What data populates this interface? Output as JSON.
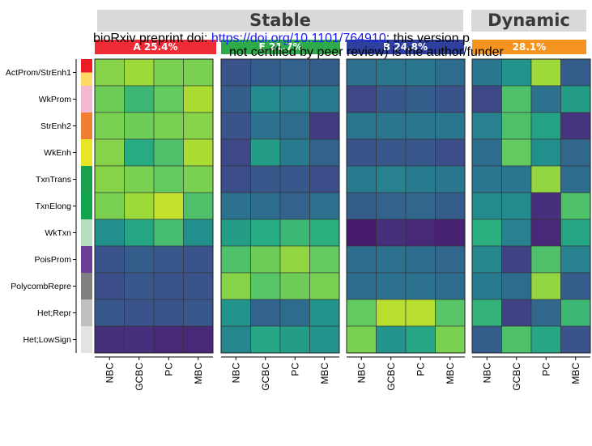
{
  "headers": [
    {
      "label": "Stable"
    },
    {
      "label": "Dynamic"
    }
  ],
  "watermark": {
    "line1_prefix": "bioRxiv preprint doi: ",
    "line1_link": "https://doi.org/10.1101/764910",
    "line1_suffix": "; this version p",
    "line2": "not certified by peer review) is the author/funder"
  },
  "panels": [
    {
      "tag": "A 25.4%",
      "color": "#ee2b34"
    },
    {
      "tag": "F 21.7%",
      "color": "#2daa4a"
    },
    {
      "tag": "B 24.8%",
      "color": "#2e3f9e"
    },
    {
      "tag": "28.1%",
      "color": "#f5941e"
    }
  ],
  "chart_data": {
    "type": "heatmap",
    "rows": [
      "ActProm/StrEnh1",
      "WkProm",
      "StrEnh2",
      "WkEnh",
      "TxnTrans",
      "TxnElong",
      "WkTxn",
      "PoisProm",
      "PolycombRepre",
      "Het;Repr",
      "Het;LowSign"
    ],
    "row_colors": [
      [
        "#ed1c24",
        "#ffd966"
      ],
      [
        "#f4b8d2"
      ],
      [
        "#f07f33"
      ],
      [
        "#e8e526"
      ],
      [
        "#1b9f4c"
      ],
      [
        "#12a34d"
      ],
      [
        "#b6dfc2"
      ],
      [
        "#6b3d97"
      ],
      [
        "#808080"
      ],
      [
        "#c0c0c0"
      ],
      [
        "#e3e3e3"
      ]
    ],
    "columns": [
      "NBC",
      "GCBC",
      "PC",
      "MBC"
    ],
    "colorscale": "viridis",
    "panels": [
      {
        "values": [
          [
            0.82,
            0.86,
            0.8,
            0.8
          ],
          [
            0.78,
            0.68,
            0.76,
            0.88
          ],
          [
            0.8,
            0.78,
            0.8,
            0.82
          ],
          [
            0.82,
            0.62,
            0.72,
            0.88
          ],
          [
            0.82,
            0.8,
            0.76,
            0.8
          ],
          [
            0.8,
            0.86,
            0.92,
            0.72
          ],
          [
            0.5,
            0.6,
            0.7,
            0.5
          ],
          [
            0.26,
            0.3,
            0.28,
            0.26
          ],
          [
            0.24,
            0.28,
            0.26,
            0.26
          ],
          [
            0.28,
            0.26,
            0.26,
            0.28
          ],
          [
            0.14,
            0.14,
            0.12,
            0.12
          ]
        ]
      },
      {
        "values": [
          [
            0.26,
            0.3,
            0.32,
            0.3
          ],
          [
            0.3,
            0.48,
            0.44,
            0.42
          ],
          [
            0.26,
            0.38,
            0.36,
            0.18
          ],
          [
            0.22,
            0.56,
            0.42,
            0.32
          ],
          [
            0.24,
            0.28,
            0.28,
            0.24
          ],
          [
            0.38,
            0.36,
            0.32,
            0.38
          ],
          [
            0.56,
            0.62,
            0.68,
            0.64
          ],
          [
            0.72,
            0.78,
            0.84,
            0.76
          ],
          [
            0.82,
            0.74,
            0.78,
            0.8
          ],
          [
            0.52,
            0.32,
            0.36,
            0.52
          ],
          [
            0.46,
            0.6,
            0.56,
            0.52
          ]
        ]
      },
      {
        "values": [
          [
            0.38,
            0.4,
            0.4,
            0.36
          ],
          [
            0.22,
            0.28,
            0.3,
            0.26
          ],
          [
            0.4,
            0.4,
            0.4,
            0.4
          ],
          [
            0.26,
            0.28,
            0.28,
            0.24
          ],
          [
            0.42,
            0.44,
            0.42,
            0.4
          ],
          [
            0.3,
            0.32,
            0.34,
            0.3
          ],
          [
            0.08,
            0.14,
            0.12,
            0.1
          ],
          [
            0.36,
            0.38,
            0.36,
            0.34
          ],
          [
            0.36,
            0.38,
            0.38,
            0.36
          ],
          [
            0.76,
            0.9,
            0.9,
            0.74
          ],
          [
            0.8,
            0.52,
            0.6,
            0.8
          ]
        ]
      },
      {
        "values": [
          [
            0.4,
            0.52,
            0.86,
            0.3
          ],
          [
            0.22,
            0.72,
            0.38,
            0.56
          ],
          [
            0.44,
            0.72,
            0.58,
            0.16
          ],
          [
            0.36,
            0.76,
            0.5,
            0.34
          ],
          [
            0.4,
            0.4,
            0.84,
            0.36
          ],
          [
            0.48,
            0.48,
            0.14,
            0.72
          ],
          [
            0.64,
            0.44,
            0.12,
            0.6
          ],
          [
            0.46,
            0.2,
            0.72,
            0.44
          ],
          [
            0.42,
            0.36,
            0.84,
            0.3
          ],
          [
            0.66,
            0.2,
            0.34,
            0.68
          ],
          [
            0.3,
            0.72,
            0.6,
            0.26
          ]
        ]
      }
    ]
  }
}
